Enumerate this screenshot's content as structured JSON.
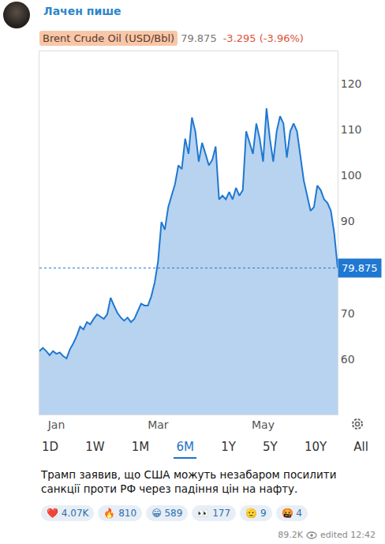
{
  "channel": {
    "name": "Лачен пише"
  },
  "chart_data": {
    "type": "line",
    "title": "Brent Crude Oil (USD/Bbl)",
    "price": 79.875,
    "change": "-3.295 (-3.96%)",
    "color": "#1f78d1",
    "categories": [
      null,
      null,
      null,
      null,
      null,
      "Jan",
      null,
      null,
      null,
      null,
      null,
      null,
      null,
      null,
      null,
      null,
      null,
      null,
      null,
      null,
      null,
      null,
      null,
      null,
      null,
      null,
      null,
      null,
      null,
      null,
      null,
      null,
      null,
      null,
      null,
      "Mar",
      null,
      null,
      null,
      null,
      null,
      null,
      null,
      null,
      null,
      null,
      null,
      null,
      null,
      null,
      null,
      null,
      null,
      null,
      null,
      null,
      null,
      null,
      null,
      null,
      null,
      null,
      null,
      null,
      null,
      null,
      "May",
      null,
      null,
      null,
      null,
      null,
      null,
      null,
      null,
      null,
      null,
      null,
      null,
      null,
      null,
      null,
      null,
      null,
      null,
      null,
      null,
      null,
      null
    ],
    "values": [
      61.8,
      62.5,
      61.8,
      60.9,
      61.8,
      61.2,
      61.5,
      60.7,
      60.2,
      62.2,
      63.5,
      65.1,
      67.1,
      66.5,
      68.1,
      67.6,
      68.8,
      69.8,
      69.3,
      68.8,
      69.8,
      73.4,
      71.7,
      70.1,
      69.1,
      68.4,
      69.1,
      68.1,
      68.8,
      70.4,
      72.1,
      71.7,
      71.7,
      73.7,
      76.7,
      81.3,
      89.9,
      88.2,
      93.1,
      95.6,
      98.1,
      102.2,
      101.4,
      108.0,
      104.7,
      112.6,
      109.6,
      103.0,
      107.1,
      104.7,
      102.2,
      103.4,
      106.3,
      94.8,
      95.6,
      94.8,
      96.4,
      94.8,
      97.3,
      95.6,
      96.8,
      109.6,
      107.1,
      104.7,
      111.3,
      108.0,
      103.0,
      114.6,
      108.0,
      103.0,
      109.6,
      112.9,
      111.3,
      103.9,
      109.6,
      111.3,
      109.6,
      104.2,
      98.9,
      95.6,
      92.3,
      93.1,
      97.8,
      96.8,
      94.8,
      94.0,
      92.3,
      87.4,
      79.875
    ],
    "ylim": [
      48,
      127
    ],
    "yticks": [
      60,
      70,
      90,
      100,
      110,
      120
    ],
    "grid": false,
    "range_buttons": [
      "1D",
      "1W",
      "1M",
      "6M",
      "1Y",
      "5Y",
      "10Y",
      "All"
    ],
    "selected_range": "6M"
  },
  "post": {
    "text": "Трамп заявив, що США можуть незабаром посилити санкції проти РФ через падіння цін на нафту.",
    "reactions": [
      {
        "emoji": "❤️",
        "count": "4.07K"
      },
      {
        "emoji": "🔥",
        "count": "810"
      },
      {
        "emoji": "😁",
        "count": "589"
      },
      {
        "emoji": "👀",
        "count": "177"
      },
      {
        "emoji": "🫡",
        "count": "9"
      },
      {
        "emoji": "🤬",
        "count": "4"
      }
    ],
    "views": "89.2K",
    "edited": "edited 12:42"
  }
}
